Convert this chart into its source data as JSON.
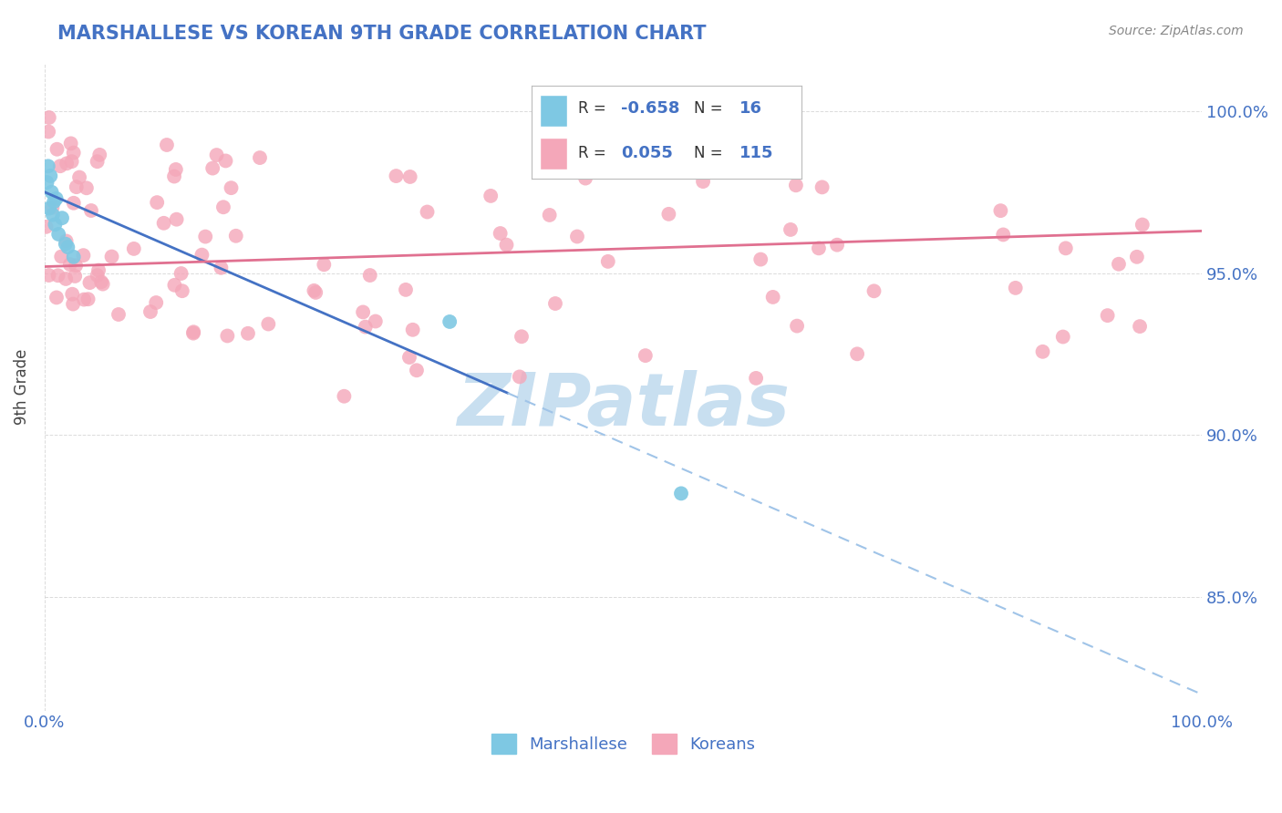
{
  "title": "MARSHALLESE VS KOREAN 9TH GRADE CORRELATION CHART",
  "source": "Source: ZipAtlas.com",
  "ylabel": "9th Grade",
  "right_ytick_labels": [
    "100.0%",
    "95.0%",
    "90.0%",
    "85.0%"
  ],
  "right_ytick_vals": [
    100.0,
    95.0,
    90.0,
    85.0
  ],
  "legend_box": {
    "R1": -0.658,
    "N1": 16,
    "R2": 0.055,
    "N2": 115
  },
  "bg_color": "#ffffff",
  "title_color": "#4472c4",
  "axis_tick_color": "#4472c4",
  "ylabel_color": "#444444",
  "marshallese_dot_color": "#7ec8e3",
  "korean_dot_color": "#f4a7b9",
  "blue_line_color": "#4472c4",
  "pink_line_color": "#e07090",
  "dashed_line_color": "#a0c4e8",
  "grid_color": "#cccccc",
  "source_color": "#888888",
  "legend_text_color": "#333333",
  "legend_value_color": "#4472c4",
  "watermark_color": "#c8dff0",
  "blue_line_x0": 0.0,
  "blue_line_y0": 97.5,
  "blue_line_x1": 100.0,
  "blue_line_y1": 82.0,
  "blue_line_solid_x_end": 40.0,
  "pink_line_x0": 0.0,
  "pink_line_y0": 95.2,
  "pink_line_x1": 100.0,
  "pink_line_y1": 96.3,
  "ylim_min": 81.5,
  "ylim_max": 101.5,
  "xlim_min": 0.0,
  "xlim_max": 100.0
}
